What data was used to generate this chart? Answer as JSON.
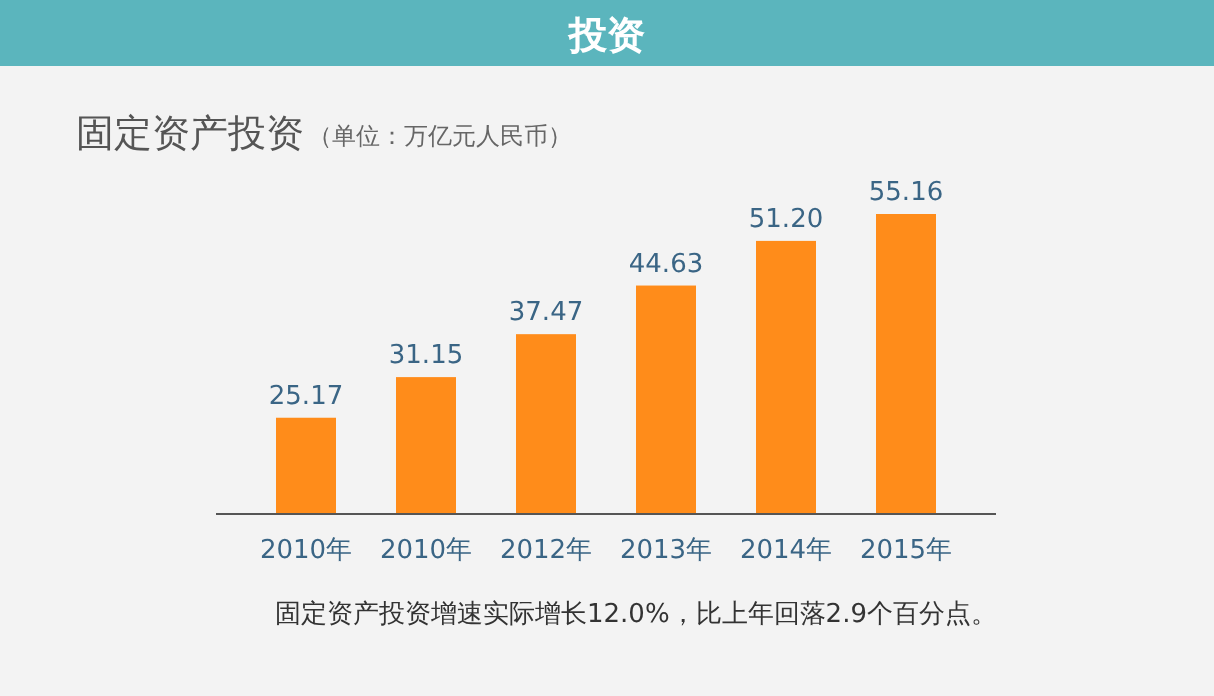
{
  "chart_data": {
    "type": "bar",
    "title": "投资",
    "subtitle": "固定资产投资",
    "annotations": [
      "（单位：万亿元人民币）",
      "固定资产投资增速实际增长12.0%，比上年回落2.9个百分点。"
    ],
    "categories": [
      "2010年",
      "2010年",
      "2012年",
      "2013年",
      "2014年",
      "2015年"
    ],
    "values": [
      25.17,
      31.15,
      37.47,
      44.63,
      51.2,
      55.16
    ],
    "value_labels": [
      "25.17",
      "31.15",
      "37.47",
      "44.63",
      "51.20",
      "55.16"
    ],
    "color": "#ff8c1a",
    "ylim": [
      11,
      55.16
    ]
  }
}
